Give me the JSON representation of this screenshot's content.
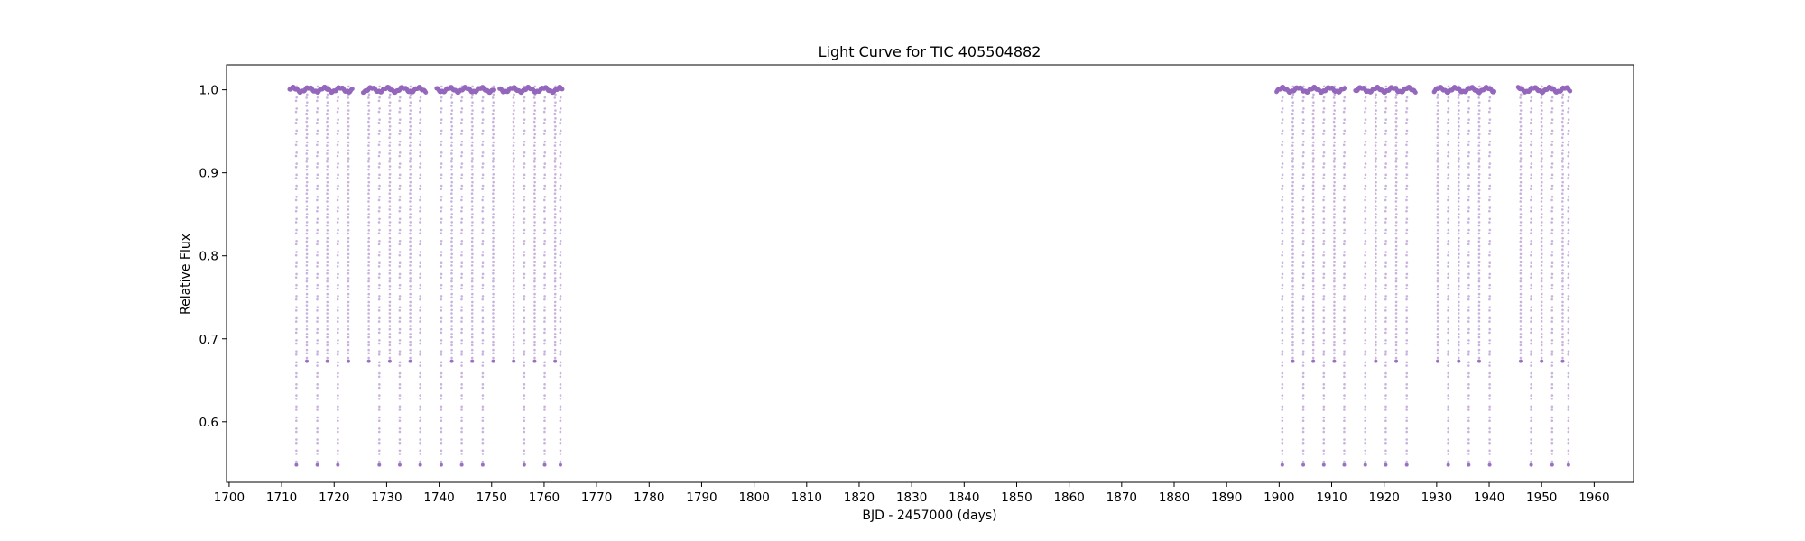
{
  "chart_data": {
    "type": "scatter",
    "title": "Light Curve for TIC 405504882",
    "xlabel": "BJD - 2457000 (days)",
    "ylabel": "Relative Flux",
    "xlim": [
      1699.5,
      1967.5
    ],
    "ylim": [
      0.527,
      1.03
    ],
    "x_ticks": [
      1700,
      1710,
      1720,
      1730,
      1740,
      1750,
      1760,
      1770,
      1780,
      1790,
      1800,
      1810,
      1820,
      1830,
      1840,
      1850,
      1860,
      1870,
      1880,
      1890,
      1900,
      1910,
      1920,
      1930,
      1940,
      1950,
      1960
    ],
    "y_ticks": [
      0.6,
      0.7,
      0.8,
      0.9,
      1.0
    ],
    "y_tick_labels": [
      "0.6",
      "0.7",
      "0.8",
      "0.9",
      "1.0"
    ],
    "grid": false,
    "marker_color": "#9467bd",
    "baseline_flux": 1.0,
    "segments": [
      [
        1711.5,
        1723.5
      ],
      [
        1725.5,
        1737.5
      ],
      [
        1739.5,
        1750.5
      ],
      [
        1751.5,
        1763.5
      ],
      [
        1899.5,
        1912.5
      ],
      [
        1914.5,
        1926.0
      ],
      [
        1929.5,
        1941.0
      ],
      [
        1945.5,
        1955.5
      ]
    ],
    "primary_eclipses": {
      "depth_flux": 0.548,
      "times": [
        1712.8,
        1716.8,
        1720.7,
        1728.6,
        1732.5,
        1736.4,
        1740.4,
        1744.3,
        1748.3,
        1756.2,
        1760.1,
        1763.1,
        1900.6,
        1904.6,
        1908.5,
        1912.4,
        1916.4,
        1920.3,
        1924.3,
        1932.2,
        1936.1,
        1940.1,
        1944.0,
        1948.0,
        1952.0,
        1955.1
      ]
    },
    "secondary_eclipses": {
      "depth_flux": 0.673,
      "times": [
        1714.8,
        1718.7,
        1722.7,
        1726.6,
        1730.6,
        1734.5,
        1742.4,
        1746.3,
        1750.3,
        1754.2,
        1758.2,
        1762.1,
        1902.6,
        1906.5,
        1910.5,
        1914.4,
        1918.4,
        1922.3,
        1926.3,
        1930.2,
        1934.2,
        1938.1,
        1942.1,
        1946.0,
        1950.0,
        1954.0
      ]
    }
  }
}
